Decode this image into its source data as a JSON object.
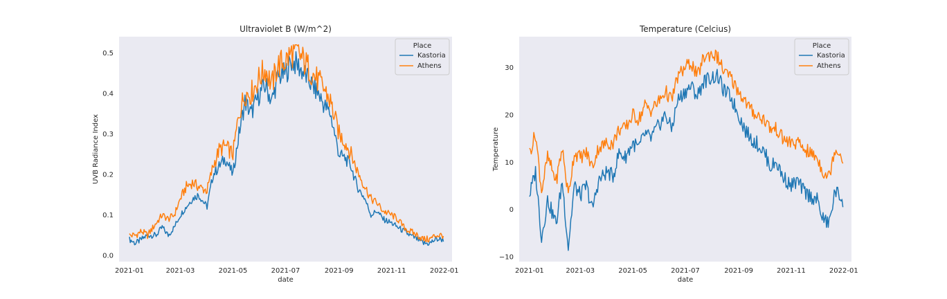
{
  "chart_data": [
    {
      "type": "line",
      "title": "Ultraviolet B (W/m^2)",
      "xlabel": "date",
      "ylabel": "UVB Radiance Index",
      "xlim": [
        "2020-12-20",
        "2022-01-10"
      ],
      "ylim": [
        -0.015,
        0.54
      ],
      "xticks": [
        "2021-01",
        "2021-03",
        "2021-05",
        "2021-07",
        "2021-09",
        "2021-11",
        "2022-01"
      ],
      "yticks": [
        "0.0",
        "0.1",
        "0.2",
        "0.3",
        "0.4",
        "0.5"
      ],
      "ytick_values": [
        0.0,
        0.1,
        0.2,
        0.3,
        0.4,
        0.5
      ],
      "grid": false,
      "legend": {
        "title": "Place",
        "position": "top-right"
      },
      "series": [
        {
          "name": "Kastoria",
          "color": "#1f77b4",
          "points": [
            [
              "2021-01-01",
              0.04
            ],
            [
              "2021-01-08",
              0.03
            ],
            [
              "2021-01-15",
              0.04
            ],
            [
              "2021-01-22",
              0.05
            ],
            [
              "2021-02-01",
              0.05
            ],
            [
              "2021-02-08",
              0.07
            ],
            [
              "2021-02-15",
              0.05
            ],
            [
              "2021-02-22",
              0.07
            ],
            [
              "2021-03-01",
              0.1
            ],
            [
              "2021-03-08",
              0.12
            ],
            [
              "2021-03-15",
              0.14
            ],
            [
              "2021-03-22",
              0.15
            ],
            [
              "2021-04-01",
              0.12
            ],
            [
              "2021-04-08",
              0.2
            ],
            [
              "2021-04-15",
              0.22
            ],
            [
              "2021-04-22",
              0.24
            ],
            [
              "2021-05-01",
              0.2
            ],
            [
              "2021-05-08",
              0.3
            ],
            [
              "2021-05-15",
              0.38
            ],
            [
              "2021-05-22",
              0.35
            ],
            [
              "2021-06-01",
              0.4
            ],
            [
              "2021-06-08",
              0.42
            ],
            [
              "2021-06-15",
              0.38
            ],
            [
              "2021-06-22",
              0.44
            ],
            [
              "2021-07-01",
              0.45
            ],
            [
              "2021-07-08",
              0.48
            ],
            [
              "2021-07-15",
              0.47
            ],
            [
              "2021-07-22",
              0.45
            ],
            [
              "2021-08-01",
              0.42
            ],
            [
              "2021-08-08",
              0.4
            ],
            [
              "2021-08-15",
              0.37
            ],
            [
              "2021-08-22",
              0.35
            ],
            [
              "2021-09-01",
              0.25
            ],
            [
              "2021-09-08",
              0.24
            ],
            [
              "2021-09-15",
              0.22
            ],
            [
              "2021-09-22",
              0.17
            ],
            [
              "2021-10-01",
              0.14
            ],
            [
              "2021-10-08",
              0.1
            ],
            [
              "2021-10-15",
              0.11
            ],
            [
              "2021-10-22",
              0.09
            ],
            [
              "2021-11-01",
              0.08
            ],
            [
              "2021-11-08",
              0.07
            ],
            [
              "2021-11-15",
              0.06
            ],
            [
              "2021-11-22",
              0.05
            ],
            [
              "2021-12-01",
              0.04
            ],
            [
              "2021-12-08",
              0.03
            ],
            [
              "2021-12-15",
              0.03
            ],
            [
              "2021-12-22",
              0.04
            ],
            [
              "2021-12-31",
              0.04
            ]
          ]
        },
        {
          "name": "Athens",
          "color": "#ff7f0e",
          "points": [
            [
              "2021-01-01",
              0.05
            ],
            [
              "2021-01-08",
              0.05
            ],
            [
              "2021-01-15",
              0.06
            ],
            [
              "2021-01-22",
              0.05
            ],
            [
              "2021-02-01",
              0.08
            ],
            [
              "2021-02-08",
              0.1
            ],
            [
              "2021-02-15",
              0.09
            ],
            [
              "2021-02-22",
              0.1
            ],
            [
              "2021-03-01",
              0.14
            ],
            [
              "2021-03-08",
              0.17
            ],
            [
              "2021-03-15",
              0.18
            ],
            [
              "2021-03-22",
              0.17
            ],
            [
              "2021-04-01",
              0.16
            ],
            [
              "2021-04-08",
              0.22
            ],
            [
              "2021-04-15",
              0.26
            ],
            [
              "2021-04-22",
              0.27
            ],
            [
              "2021-05-01",
              0.25
            ],
            [
              "2021-05-08",
              0.35
            ],
            [
              "2021-05-15",
              0.4
            ],
            [
              "2021-05-22",
              0.4
            ],
            [
              "2021-06-01",
              0.44
            ],
            [
              "2021-06-08",
              0.46
            ],
            [
              "2021-06-15",
              0.42
            ],
            [
              "2021-06-22",
              0.47
            ],
            [
              "2021-07-01",
              0.48
            ],
            [
              "2021-07-08",
              0.5
            ],
            [
              "2021-07-15",
              0.5
            ],
            [
              "2021-07-22",
              0.48
            ],
            [
              "2021-08-01",
              0.45
            ],
            [
              "2021-08-08",
              0.43
            ],
            [
              "2021-08-15",
              0.41
            ],
            [
              "2021-08-22",
              0.38
            ],
            [
              "2021-09-01",
              0.3
            ],
            [
              "2021-09-08",
              0.28
            ],
            [
              "2021-09-15",
              0.25
            ],
            [
              "2021-09-22",
              0.21
            ],
            [
              "2021-10-01",
              0.17
            ],
            [
              "2021-10-08",
              0.14
            ],
            [
              "2021-10-15",
              0.13
            ],
            [
              "2021-10-22",
              0.11
            ],
            [
              "2021-11-01",
              0.1
            ],
            [
              "2021-11-08",
              0.09
            ],
            [
              "2021-11-15",
              0.07
            ],
            [
              "2021-11-22",
              0.06
            ],
            [
              "2021-12-01",
              0.05
            ],
            [
              "2021-12-08",
              0.04
            ],
            [
              "2021-12-15",
              0.04
            ],
            [
              "2021-12-22",
              0.05
            ],
            [
              "2021-12-31",
              0.05
            ]
          ]
        }
      ]
    },
    {
      "type": "line",
      "title": "Temperature (Celcius)",
      "xlabel": "date",
      "ylabel": "Temperature",
      "xlim": [
        "2020-12-20",
        "2022-01-10"
      ],
      "ylim": [
        -11,
        36.5
      ],
      "xticks": [
        "2021-01",
        "2021-03",
        "2021-05",
        "2021-07",
        "2021-09",
        "2021-11",
        "2022-01"
      ],
      "yticks": [
        "−10",
        "0",
        "10",
        "20",
        "30"
      ],
      "ytick_values": [
        -10,
        0,
        10,
        20,
        30
      ],
      "grid": false,
      "legend": {
        "title": "Place",
        "position": "top-right"
      },
      "series": [
        {
          "name": "Kastoria",
          "color": "#1f77b4",
          "points": [
            [
              "2021-01-01",
              3
            ],
            [
              "2021-01-08",
              8
            ],
            [
              "2021-01-15",
              -6
            ],
            [
              "2021-01-22",
              2
            ],
            [
              "2021-02-01",
              -3
            ],
            [
              "2021-02-08",
              6
            ],
            [
              "2021-02-15",
              -8
            ],
            [
              "2021-02-22",
              5
            ],
            [
              "2021-03-01",
              3
            ],
            [
              "2021-03-08",
              5
            ],
            [
              "2021-03-15",
              0
            ],
            [
              "2021-03-22",
              6
            ],
            [
              "2021-04-01",
              8
            ],
            [
              "2021-04-08",
              7
            ],
            [
              "2021-04-15",
              12
            ],
            [
              "2021-04-22",
              11
            ],
            [
              "2021-05-01",
              14
            ],
            [
              "2021-05-08",
              13
            ],
            [
              "2021-05-15",
              16
            ],
            [
              "2021-05-22",
              15
            ],
            [
              "2021-06-01",
              18
            ],
            [
              "2021-06-08",
              20
            ],
            [
              "2021-06-15",
              17
            ],
            [
              "2021-06-22",
              23
            ],
            [
              "2021-07-01",
              25
            ],
            [
              "2021-07-08",
              26
            ],
            [
              "2021-07-15",
              24
            ],
            [
              "2021-07-22",
              27
            ],
            [
              "2021-08-01",
              28
            ],
            [
              "2021-08-08",
              28
            ],
            [
              "2021-08-15",
              25
            ],
            [
              "2021-08-22",
              24
            ],
            [
              "2021-09-01",
              20
            ],
            [
              "2021-09-08",
              17
            ],
            [
              "2021-09-15",
              15
            ],
            [
              "2021-09-22",
              14
            ],
            [
              "2021-10-01",
              12
            ],
            [
              "2021-10-08",
              9
            ],
            [
              "2021-10-15",
              10
            ],
            [
              "2021-10-22",
              7
            ],
            [
              "2021-11-01",
              5
            ],
            [
              "2021-11-08",
              6
            ],
            [
              "2021-11-15",
              4
            ],
            [
              "2021-11-22",
              3
            ],
            [
              "2021-12-01",
              2
            ],
            [
              "2021-12-08",
              -2
            ],
            [
              "2021-12-15",
              -3
            ],
            [
              "2021-12-22",
              4
            ],
            [
              "2021-12-31",
              2
            ]
          ]
        },
        {
          "name": "Athens",
          "color": "#ff7f0e",
          "points": [
            [
              "2021-01-01",
              12
            ],
            [
              "2021-01-08",
              16
            ],
            [
              "2021-01-15",
              4
            ],
            [
              "2021-01-22",
              11
            ],
            [
              "2021-02-01",
              6
            ],
            [
              "2021-02-08",
              13
            ],
            [
              "2021-02-15",
              3
            ],
            [
              "2021-02-22",
              12
            ],
            [
              "2021-03-01",
              11
            ],
            [
              "2021-03-08",
              12
            ],
            [
              "2021-03-15",
              9
            ],
            [
              "2021-03-22",
              13
            ],
            [
              "2021-04-01",
              14
            ],
            [
              "2021-04-08",
              14
            ],
            [
              "2021-04-15",
              17
            ],
            [
              "2021-04-22",
              17
            ],
            [
              "2021-05-01",
              20
            ],
            [
              "2021-05-08",
              19
            ],
            [
              "2021-05-15",
              22
            ],
            [
              "2021-05-22",
              21
            ],
            [
              "2021-06-01",
              23
            ],
            [
              "2021-06-08",
              25
            ],
            [
              "2021-06-15",
              23
            ],
            [
              "2021-06-22",
              28
            ],
            [
              "2021-07-01",
              30
            ],
            [
              "2021-07-08",
              31
            ],
            [
              "2021-07-15",
              28
            ],
            [
              "2021-07-22",
              32
            ],
            [
              "2021-08-01",
              33
            ],
            [
              "2021-08-08",
              32
            ],
            [
              "2021-08-15",
              29
            ],
            [
              "2021-08-22",
              28
            ],
            [
              "2021-09-01",
              25
            ],
            [
              "2021-09-08",
              23
            ],
            [
              "2021-09-15",
              21
            ],
            [
              "2021-09-22",
              20
            ],
            [
              "2021-10-01",
              19
            ],
            [
              "2021-10-08",
              17
            ],
            [
              "2021-10-15",
              17
            ],
            [
              "2021-10-22",
              15
            ],
            [
              "2021-11-01",
              14
            ],
            [
              "2021-11-08",
              14
            ],
            [
              "2021-11-15",
              13
            ],
            [
              "2021-11-22",
              12
            ],
            [
              "2021-12-01",
              11
            ],
            [
              "2021-12-08",
              8
            ],
            [
              "2021-12-15",
              7
            ],
            [
              "2021-12-22",
              13
            ],
            [
              "2021-12-31",
              11
            ]
          ]
        }
      ]
    }
  ]
}
